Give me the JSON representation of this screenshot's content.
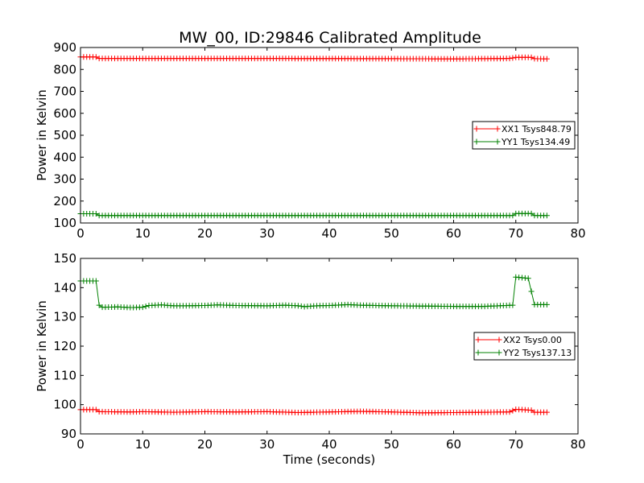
{
  "title": "MW_00, ID:29846 Calibrated Amplitude",
  "chart_data": [
    {
      "type": "line",
      "ylabel": "Power in Kelvin",
      "xlabel": "",
      "xlim": [
        0,
        80
      ],
      "ylim": [
        100,
        900
      ],
      "xticks": [
        0,
        10,
        20,
        30,
        40,
        50,
        60,
        70,
        80
      ],
      "yticks": [
        100,
        200,
        300,
        400,
        500,
        600,
        700,
        800,
        900
      ],
      "legend_position": "right",
      "series": [
        {
          "name": "XX1 Tsys848.79",
          "color": "#ff0000",
          "points": [
            [
              0,
              857
            ],
            [
              2.5,
              857
            ],
            [
              3,
              850
            ],
            [
              10,
              850
            ],
            [
              30,
              850
            ],
            [
              50,
              849
            ],
            [
              60,
              848
            ],
            [
              69,
              850
            ],
            [
              70,
              855
            ],
            [
              72.5,
              855
            ],
            [
              73,
              849
            ],
            [
              75,
              848
            ]
          ]
        },
        {
          "name": "YY1 Tsys134.49",
          "color": "#008000",
          "points": [
            [
              0,
              142
            ],
            [
              2.5,
              142
            ],
            [
              3,
              134
            ],
            [
              10,
              134
            ],
            [
              30,
              134
            ],
            [
              50,
              134
            ],
            [
              60,
              134
            ],
            [
              69.5,
              134
            ],
            [
              70,
              143
            ],
            [
              72.5,
              143
            ],
            [
              73,
              134
            ],
            [
              75,
              134
            ]
          ]
        }
      ]
    },
    {
      "type": "line",
      "ylabel": "Power in Kelvin",
      "xlabel": "Time (seconds)",
      "xlim": [
        0,
        80
      ],
      "ylim": [
        90,
        150
      ],
      "xticks": [
        0,
        10,
        20,
        30,
        40,
        50,
        60,
        70,
        80
      ],
      "yticks": [
        90,
        100,
        110,
        120,
        130,
        140,
        150
      ],
      "legend_position": "right",
      "series": [
        {
          "name": "XX2 Tsys0.00",
          "color": "#ff0000",
          "points": [
            [
              0,
              98.3
            ],
            [
              2.5,
              98.3
            ],
            [
              3,
              97.6
            ],
            [
              8,
              97.5
            ],
            [
              10,
              97.6
            ],
            [
              15,
              97.4
            ],
            [
              20,
              97.6
            ],
            [
              25,
              97.5
            ],
            [
              30,
              97.6
            ],
            [
              35,
              97.3
            ],
            [
              40,
              97.5
            ],
            [
              45,
              97.7
            ],
            [
              50,
              97.5
            ],
            [
              55,
              97.2
            ],
            [
              60,
              97.3
            ],
            [
              65,
              97.4
            ],
            [
              69,
              97.5
            ],
            [
              70,
              98.4
            ],
            [
              72.5,
              98.1
            ],
            [
              73,
              97.4
            ],
            [
              75,
              97.4
            ]
          ]
        },
        {
          "name": "YY2 Tsys137.13",
          "color": "#008000",
          "points": [
            [
              0,
              142.3
            ],
            [
              2.5,
              142.3
            ],
            [
              3,
              134
            ],
            [
              3.5,
              133.3
            ],
            [
              6,
              133.4
            ],
            [
              8,
              133.2
            ],
            [
              10,
              133.3
            ],
            [
              11,
              133.9
            ],
            [
              13,
              134.1
            ],
            [
              15,
              133.8
            ],
            [
              17,
              133.8
            ],
            [
              20,
              133.9
            ],
            [
              22,
              134.1
            ],
            [
              25,
              133.9
            ],
            [
              30,
              133.8
            ],
            [
              33,
              134
            ],
            [
              35,
              133.8
            ],
            [
              36,
              133.5
            ],
            [
              38,
              133.8
            ],
            [
              40,
              133.9
            ],
            [
              43,
              134.2
            ],
            [
              45,
              134
            ],
            [
              50,
              133.8
            ],
            [
              55,
              133.7
            ],
            [
              60,
              133.6
            ],
            [
              65,
              133.6
            ],
            [
              69.5,
              134
            ],
            [
              70,
              143.6
            ],
            [
              72,
              143.2
            ],
            [
              73,
              134.2
            ],
            [
              75,
              134.2
            ]
          ]
        }
      ]
    }
  ]
}
